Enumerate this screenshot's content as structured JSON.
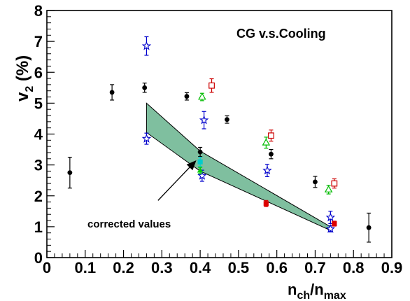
{
  "chart_data": {
    "type": "scatter",
    "title": "CG v.s.Cooling",
    "xlabel": {
      "main": "n",
      "sub1": "ch",
      "mid": "/n",
      "sub2": "max"
    },
    "ylabel": {
      "main": "v",
      "sub": "2",
      "rest": " (%)"
    },
    "xlim": [
      0,
      0.9
    ],
    "ylim": [
      0,
      8
    ],
    "xticks": [
      0,
      0.1,
      0.2,
      0.3,
      0.4,
      0.5,
      0.6,
      0.7,
      0.8,
      0.9
    ],
    "xtick_labels": [
      "0",
      "0.1",
      "0.2",
      "0.3",
      "0.4",
      "0.5",
      "0.6",
      "0.7",
      "0.8",
      "0.9"
    ],
    "yticks": [
      0,
      1,
      2,
      3,
      4,
      5,
      6,
      7,
      8
    ],
    "ytick_labels": [
      "0",
      "1",
      "2",
      "3",
      "4",
      "5",
      "6",
      "7",
      "8"
    ],
    "grid": false,
    "annotation": {
      "text": "corrected values",
      "arrow_from": [
        0.29,
        1.85
      ],
      "arrow_to": [
        0.39,
        3.15
      ]
    },
    "band": {
      "color": "#7fbf9f",
      "upper": [
        [
          0.26,
          5.0
        ],
        [
          0.4,
          3.45
        ],
        [
          0.74,
          1.0
        ]
      ],
      "lower": [
        [
          0.26,
          4.05
        ],
        [
          0.4,
          2.8
        ],
        [
          0.74,
          0.88
        ]
      ]
    },
    "series": [
      {
        "marker": "filled-circle",
        "color": "#000000",
        "points": [
          {
            "x": 0.06,
            "y": 2.75,
            "err": 0.5
          },
          {
            "x": 0.17,
            "y": 5.35,
            "err": 0.25
          },
          {
            "x": 0.255,
            "y": 5.5,
            "err": 0.15
          },
          {
            "x": 0.365,
            "y": 5.22,
            "err": 0.12
          },
          {
            "x": 0.4,
            "y": 3.42,
            "err": 0.15
          },
          {
            "x": 0.47,
            "y": 4.47,
            "err": 0.12
          },
          {
            "x": 0.585,
            "y": 3.35,
            "err": 0.15
          },
          {
            "x": 0.7,
            "y": 2.45,
            "err": 0.18
          },
          {
            "x": 0.84,
            "y": 0.97,
            "err": 0.47
          }
        ]
      },
      {
        "marker": "open-star",
        "color": "#0000cc",
        "points": [
          {
            "x": 0.26,
            "y": 6.85,
            "err": 0.3
          },
          {
            "x": 0.26,
            "y": 3.85,
            "err": 0.18
          },
          {
            "x": 0.41,
            "y": 4.45,
            "err": 0.28
          },
          {
            "x": 0.405,
            "y": 2.65,
            "err": 0.18
          },
          {
            "x": 0.575,
            "y": 2.82,
            "err": 0.2
          },
          {
            "x": 0.74,
            "y": 1.3,
            "err": 0.2
          },
          {
            "x": 0.74,
            "y": 0.93,
            "err": 0.1
          }
        ]
      },
      {
        "marker": "open-square",
        "color": "#cc0000",
        "points": [
          {
            "x": 0.43,
            "y": 5.57,
            "err": 0.22
          },
          {
            "x": 0.585,
            "y": 3.95,
            "err": 0.18
          },
          {
            "x": 0.75,
            "y": 2.4,
            "err": 0.15
          }
        ]
      },
      {
        "marker": "open-triangle",
        "color": "#00bb00",
        "points": [
          {
            "x": 0.405,
            "y": 5.2,
            "err": 0.12
          },
          {
            "x": 0.572,
            "y": 3.72,
            "err": 0.18
          },
          {
            "x": 0.735,
            "y": 2.2,
            "err": 0.14
          }
        ]
      },
      {
        "marker": "filled-square",
        "color": "#dd0000",
        "points": [
          {
            "x": 0.572,
            "y": 1.75,
            "err": 0.1
          },
          {
            "x": 0.75,
            "y": 1.1,
            "err": 0.08
          }
        ]
      },
      {
        "marker": "filled-square",
        "color": "#00cccc",
        "points": [
          {
            "x": 0.4,
            "y": 3.1,
            "err": 0.15
          }
        ]
      },
      {
        "marker": "filled-triangle",
        "color": "#00cc00",
        "points": [
          {
            "x": 0.4,
            "y": 2.82,
            "err": 0.1
          }
        ]
      }
    ]
  }
}
